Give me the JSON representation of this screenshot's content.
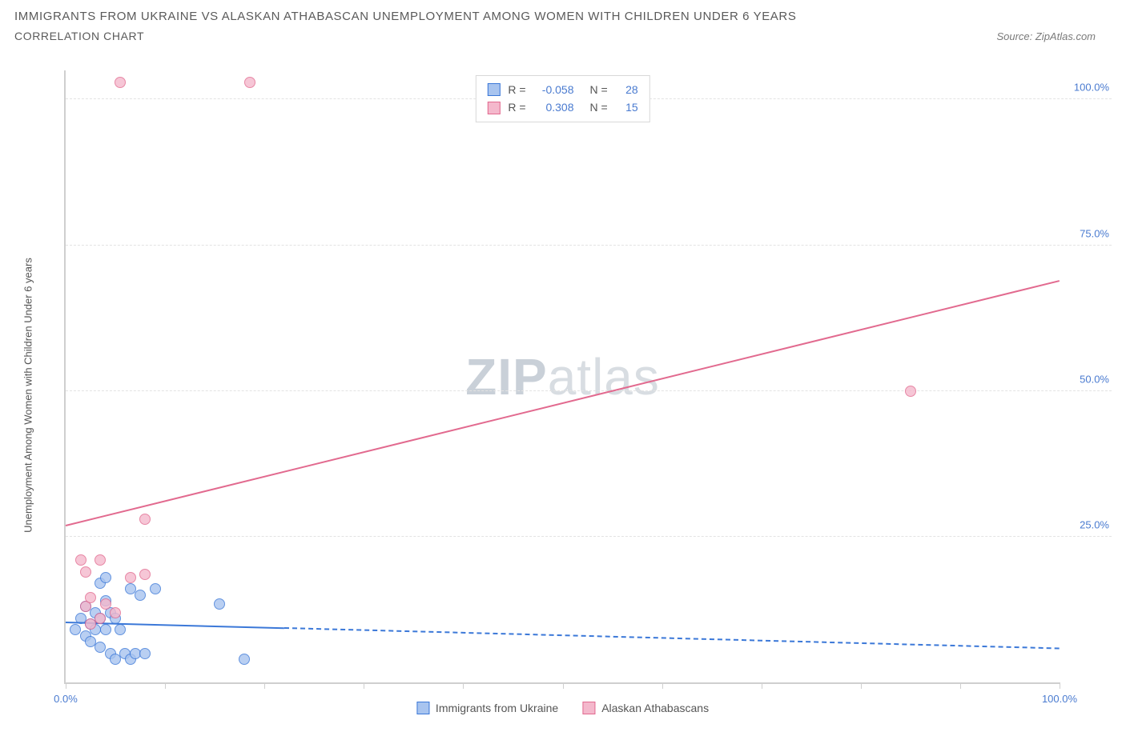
{
  "title_line1": "IMMIGRANTS FROM UKRAINE VS ALASKAN ATHABASCAN UNEMPLOYMENT AMONG WOMEN WITH CHILDREN UNDER 6 YEARS",
  "title_line2": "CORRELATION CHART",
  "source_label": "Source: ZipAtlas.com",
  "ylabel": "Unemployment Among Women with Children Under 6 years",
  "watermark_bold": "ZIP",
  "watermark_light": "atlas",
  "chart": {
    "type": "scatter",
    "background_color": "#ffffff",
    "grid_color": "#e3e3e3",
    "axis_color": "#cfcfcf",
    "label_color": "#555555",
    "tick_label_color": "#4a7bd0",
    "tick_fontsize": 13,
    "label_fontsize": 13,
    "xlim": [
      0,
      100
    ],
    "ylim": [
      0,
      105
    ],
    "ytick_values": [
      25,
      50,
      75,
      100
    ],
    "ytick_labels": [
      "25.0%",
      "50.0%",
      "75.0%",
      "100.0%"
    ],
    "xtick_values": [
      0,
      10,
      20,
      30,
      40,
      50,
      60,
      70,
      80,
      90,
      100
    ],
    "xtick_major_labels": {
      "0": "0.0%",
      "100": "100.0%"
    },
    "point_radius": 7,
    "point_border_width": 1.2,
    "point_fill_opacity": 0.35,
    "series": [
      {
        "key": "ukraine",
        "label": "Immigrants from Ukraine",
        "color_border": "#3b78d8",
        "color_fill": "#a8c4ef",
        "R": "-0.058",
        "N": "28",
        "trend": {
          "x1": 0,
          "y1": 10.5,
          "x2": 22,
          "y2": 9.5,
          "width": 2,
          "style": "solid"
        },
        "trend_ext": {
          "x1": 22,
          "y1": 9.5,
          "x2": 100,
          "y2": 6.0,
          "width": 2,
          "style": "dashed"
        },
        "points": [
          {
            "x": 1.0,
            "y": 9
          },
          {
            "x": 1.5,
            "y": 11
          },
          {
            "x": 2.0,
            "y": 8
          },
          {
            "x": 2.0,
            "y": 13
          },
          {
            "x": 2.5,
            "y": 10
          },
          {
            "x": 2.5,
            "y": 7
          },
          {
            "x": 3.0,
            "y": 12
          },
          {
            "x": 3.0,
            "y": 9
          },
          {
            "x": 3.5,
            "y": 17
          },
          {
            "x": 3.5,
            "y": 11
          },
          {
            "x": 3.5,
            "y": 6
          },
          {
            "x": 4.0,
            "y": 14
          },
          {
            "x": 4.0,
            "y": 9
          },
          {
            "x": 4.5,
            "y": 12
          },
          {
            "x": 4.5,
            "y": 5
          },
          {
            "x": 5.0,
            "y": 11
          },
          {
            "x": 5.0,
            "y": 4
          },
          {
            "x": 5.5,
            "y": 9
          },
          {
            "x": 6.0,
            "y": 5
          },
          {
            "x": 6.5,
            "y": 16
          },
          {
            "x": 6.5,
            "y": 4
          },
          {
            "x": 7.0,
            "y": 5
          },
          {
            "x": 7.5,
            "y": 15
          },
          {
            "x": 8.0,
            "y": 5
          },
          {
            "x": 9.0,
            "y": 16
          },
          {
            "x": 15.5,
            "y": 13.5
          },
          {
            "x": 18.0,
            "y": 4
          },
          {
            "x": 4.0,
            "y": 18
          }
        ]
      },
      {
        "key": "athabascan",
        "label": "Alaskan Athabascans",
        "color_border": "#e26a8f",
        "color_fill": "#f4b8cc",
        "R": "0.308",
        "N": "15",
        "trend": {
          "x1": 0,
          "y1": 27,
          "x2": 100,
          "y2": 69,
          "width": 2,
          "style": "solid"
        },
        "points": [
          {
            "x": 1.5,
            "y": 21
          },
          {
            "x": 2.0,
            "y": 19
          },
          {
            "x": 2.0,
            "y": 13
          },
          {
            "x": 2.5,
            "y": 14.5
          },
          {
            "x": 2.5,
            "y": 10
          },
          {
            "x": 3.5,
            "y": 11
          },
          {
            "x": 3.5,
            "y": 21
          },
          {
            "x": 4.0,
            "y": 13.5
          },
          {
            "x": 6.5,
            "y": 18
          },
          {
            "x": 8.0,
            "y": 18.5
          },
          {
            "x": 8.0,
            "y": 28
          },
          {
            "x": 5.5,
            "y": 103
          },
          {
            "x": 18.5,
            "y": 103
          },
          {
            "x": 85.0,
            "y": 50
          },
          {
            "x": 5.0,
            "y": 12
          }
        ]
      }
    ]
  },
  "legend_top": {
    "r_label": "R =",
    "n_label": "N ="
  }
}
